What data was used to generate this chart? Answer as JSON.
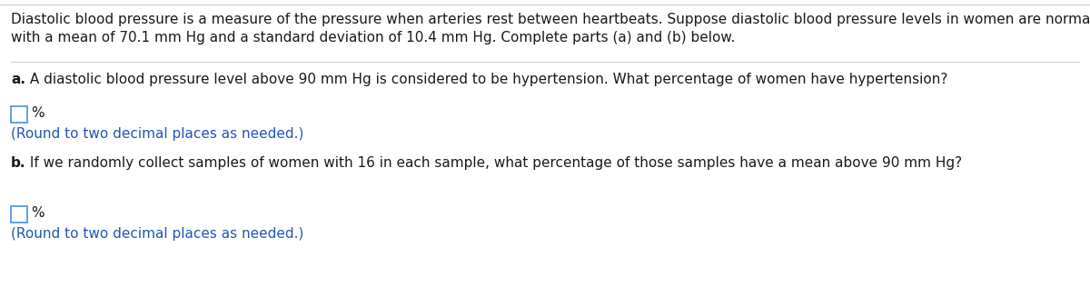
{
  "bg_color": "#ffffff",
  "text_color": "#1a1a1a",
  "blue_color": "#2255BB",
  "box_color": "#5599DD",
  "top_line_text": "Diastolic blood pressure is a measure of the pressure when arteries rest between heartbeats. Suppose diastolic blood pressure levels in women are normally distributed",
  "top_line_text2": "with a mean of 70.1 mm Hg and a standard deviation of 10.4 mm Hg. Complete parts (a) and (b) below.",
  "part_a_bold": "a.",
  "part_a_text": " A diastolic blood pressure level above 90 mm Hg is considered to be hypertension. What percentage of women have hypertension?",
  "round_a": "(Round to two decimal places as needed.)",
  "part_b_bold": "b.",
  "part_b_text": " If we randomly collect samples of women with 16 in each sample, what percentage of those samples have a mean above 90 mm Hg?",
  "round_b": "(Round to two decimal places as needed.)",
  "percent_sign": "%",
  "font_size_main": 11.0,
  "figsize": [
    12.0,
    3.27
  ],
  "dpi": 100
}
